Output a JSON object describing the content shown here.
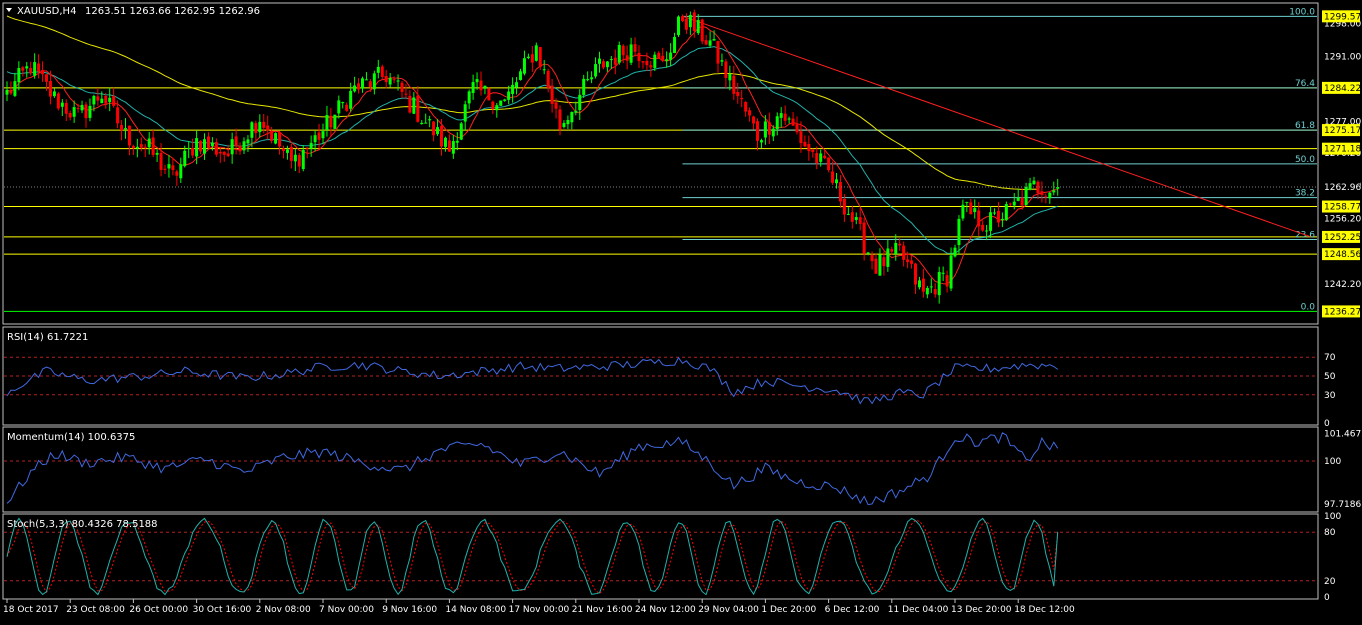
{
  "header": {
    "symbol": "XAUUSD,H4",
    "ohlc": "1263.51 1263.66 1262.95 1262.96"
  },
  "colors": {
    "background": "#000000",
    "frame": "#c0c0c0",
    "bull": "#00ff00",
    "bear": "#ff0000",
    "ma_fast": "#ff2020",
    "ma_mid": "#20b2aa",
    "ma_slow": "#e6e600",
    "level_line": "#ffff00",
    "fib_line": "#6fd0d0",
    "fib_base": "#00ff00",
    "trendline": "#ff2020",
    "osc_line": "#4169e1",
    "stoch_main": "#20b2aa",
    "stoch_signal": "#ff0000",
    "level_dash": "#b22222",
    "price_tag_bg": "#ffff00",
    "price_tag_text": "#000000",
    "current_tag_bg": "#000000",
    "current_tag_text": "#ffffff"
  },
  "chart_data": [
    {
      "type": "candlestick",
      "name": "price",
      "symbol": "XAUUSD",
      "timeframe": "H4",
      "ylim": [
        1234,
        1302
      ],
      "y_ticks": [
        "1298.00",
        "1291.00",
        "1277.00",
        "1270.20",
        "1263.40",
        "1256.20",
        "1242.20"
      ],
      "y_tick_values": [
        1298,
        1291,
        1277,
        1270.2,
        1263.4,
        1256.2,
        1242.2
      ],
      "price_tags": [
        {
          "label": "1299.57",
          "value": 1299.57
        },
        {
          "label": "1284.22",
          "value": 1284.22
        },
        {
          "label": "1275.17",
          "value": 1275.17
        },
        {
          "label": "1271.18",
          "value": 1271.18
        },
        {
          "label": "1258.77",
          "value": 1258.77
        },
        {
          "label": "1252.25",
          "value": 1252.25
        },
        {
          "label": "1248.56",
          "value": 1248.56
        },
        {
          "label": "1236.27",
          "value": 1236.27
        }
      ],
      "current_price": {
        "label": "1262.96",
        "value": 1262.96
      },
      "horizontal_levels": [
        1284.22,
        1275.17,
        1271.18,
        1258.77,
        1252.25,
        1248.56
      ],
      "fibonacci": {
        "levels": [
          {
            "label": "100.0",
            "value": 1299.57
          },
          {
            "label": "76.4",
            "value": 1284.22
          },
          {
            "label": "61.8",
            "value": 1275.17
          },
          {
            "label": "50.0",
            "value": 1267.92
          },
          {
            "label": "38.2",
            "value": 1260.68
          },
          {
            "label": "23.6",
            "value": 1251.7
          },
          {
            "label": "0.0",
            "value": 1236.27
          }
        ],
        "from_bar": 171
      },
      "trendline": {
        "from_bar": 171,
        "from_value": 1299.6,
        "to_bar": 330,
        "to_value": 1252.3
      },
      "x_labels": [
        "18 Oct 2017",
        "23 Oct 08:00",
        "26 Oct 00:00",
        "30 Oct 16:00",
        "2 Nov 08:00",
        "7 Nov 00:00",
        "9 Nov 16:00",
        "14 Nov 08:00",
        "17 Nov 00:00",
        "21 Nov 16:00",
        "24 Nov 12:00",
        "29 Nov 04:00",
        "1 Dec 20:00",
        "6 Dec 12:00",
        "11 Dec 04:00",
        "13 Dec 20:00",
        "18 Dec 12:00"
      ],
      "x_label_bars": [
        0,
        16,
        32,
        48,
        64,
        80,
        96,
        112,
        128,
        144,
        160,
        176,
        192,
        208,
        224,
        240,
        256
      ],
      "anchors": [
        [
          0,
          1283
        ],
        [
          6,
          1289
        ],
        [
          12,
          1282
        ],
        [
          18,
          1278
        ],
        [
          24,
          1283
        ],
        [
          30,
          1274
        ],
        [
          36,
          1271
        ],
        [
          42,
          1265
        ],
        [
          48,
          1273
        ],
        [
          56,
          1270
        ],
        [
          64,
          1278
        ],
        [
          72,
          1268
        ],
        [
          80,
          1275
        ],
        [
          88,
          1284
        ],
        [
          96,
          1287
        ],
        [
          104,
          1279
        ],
        [
          112,
          1271
        ],
        [
          118,
          1284
        ],
        [
          126,
          1281
        ],
        [
          134,
          1293
        ],
        [
          140,
          1276
        ],
        [
          150,
          1289
        ],
        [
          158,
          1293
        ],
        [
          166,
          1289
        ],
        [
          171,
          1299.5
        ],
        [
          178,
          1294
        ],
        [
          184,
          1284
        ],
        [
          190,
          1274
        ],
        [
          196,
          1279
        ],
        [
          202,
          1272
        ],
        [
          208,
          1266
        ],
        [
          214,
          1256
        ],
        [
          220,
          1246
        ],
        [
          226,
          1249
        ],
        [
          232,
          1240
        ],
        [
          238,
          1244
        ],
        [
          242,
          1258
        ],
        [
          248,
          1255
        ],
        [
          254,
          1258
        ],
        [
          260,
          1263
        ],
        [
          266,
          1263
        ]
      ]
    },
    {
      "type": "line",
      "name": "RSI(14)",
      "title": "RSI(14) 61.7221",
      "ylim": [
        0,
        100
      ],
      "y_ticks": [
        "70",
        "50",
        "30",
        "0"
      ],
      "y_tick_values": [
        70,
        50,
        30,
        0
      ],
      "levels": [
        70,
        50,
        30
      ],
      "anchors": [
        [
          0,
          33
        ],
        [
          10,
          55
        ],
        [
          20,
          45
        ],
        [
          35,
          50
        ],
        [
          45,
          55
        ],
        [
          60,
          48
        ],
        [
          70,
          52
        ],
        [
          80,
          60
        ],
        [
          90,
          62
        ],
        [
          100,
          55
        ],
        [
          110,
          50
        ],
        [
          120,
          55
        ],
        [
          130,
          60
        ],
        [
          140,
          58
        ],
        [
          150,
          60
        ],
        [
          160,
          63
        ],
        [
          171,
          67
        ],
        [
          178,
          58
        ],
        [
          184,
          33
        ],
        [
          192,
          45
        ],
        [
          200,
          40
        ],
        [
          210,
          35
        ],
        [
          218,
          22
        ],
        [
          226,
          32
        ],
        [
          232,
          30
        ],
        [
          240,
          58
        ],
        [
          250,
          58
        ],
        [
          258,
          62
        ],
        [
          266,
          61
        ]
      ]
    },
    {
      "type": "line",
      "name": "Momentum(14)",
      "title": "Momentum(14) 100.6375",
      "ylim": [
        97.4,
        101.7
      ],
      "y_ticks": [
        "101.4675",
        "100",
        "97.7186"
      ],
      "y_tick_values": [
        101.4675,
        100,
        97.7186
      ],
      "levels": [
        100
      ],
      "anchors": [
        [
          0,
          97.8
        ],
        [
          6,
          99.4
        ],
        [
          12,
          100.4
        ],
        [
          20,
          99.9
        ],
        [
          30,
          100.2
        ],
        [
          40,
          99.6
        ],
        [
          50,
          100.1
        ],
        [
          60,
          99.4
        ],
        [
          70,
          100.2
        ],
        [
          80,
          100.5
        ],
        [
          90,
          99.9
        ],
        [
          100,
          99.5
        ],
        [
          110,
          100.6
        ],
        [
          120,
          100.9
        ],
        [
          130,
          99.8
        ],
        [
          140,
          100.5
        ],
        [
          150,
          99.3
        ],
        [
          160,
          100.8
        ],
        [
          171,
          101.0
        ],
        [
          178,
          99.9
        ],
        [
          184,
          98.7
        ],
        [
          192,
          99.6
        ],
        [
          200,
          98.9
        ],
        [
          210,
          98.6
        ],
        [
          218,
          97.8
        ],
        [
          226,
          98.4
        ],
        [
          234,
          99.3
        ],
        [
          240,
          101.3
        ],
        [
          246,
          101.0
        ],
        [
          252,
          101.3
        ],
        [
          258,
          100.0
        ],
        [
          262,
          101.0
        ],
        [
          266,
          100.6
        ]
      ]
    },
    {
      "type": "line",
      "name": "Stoch(5,3,3)",
      "title": "Stoch(5,3,3) 80.4326 78.5188",
      "ylim": [
        0,
        100
      ],
      "y_ticks": [
        "100",
        "80",
        "20",
        "0"
      ],
      "y_tick_values": [
        100,
        80,
        20,
        0
      ],
      "levels": [
        80,
        20
      ],
      "series": [
        {
          "name": "main",
          "value": 80.4326
        },
        {
          "name": "signal",
          "value": 78.5188
        }
      ]
    }
  ]
}
